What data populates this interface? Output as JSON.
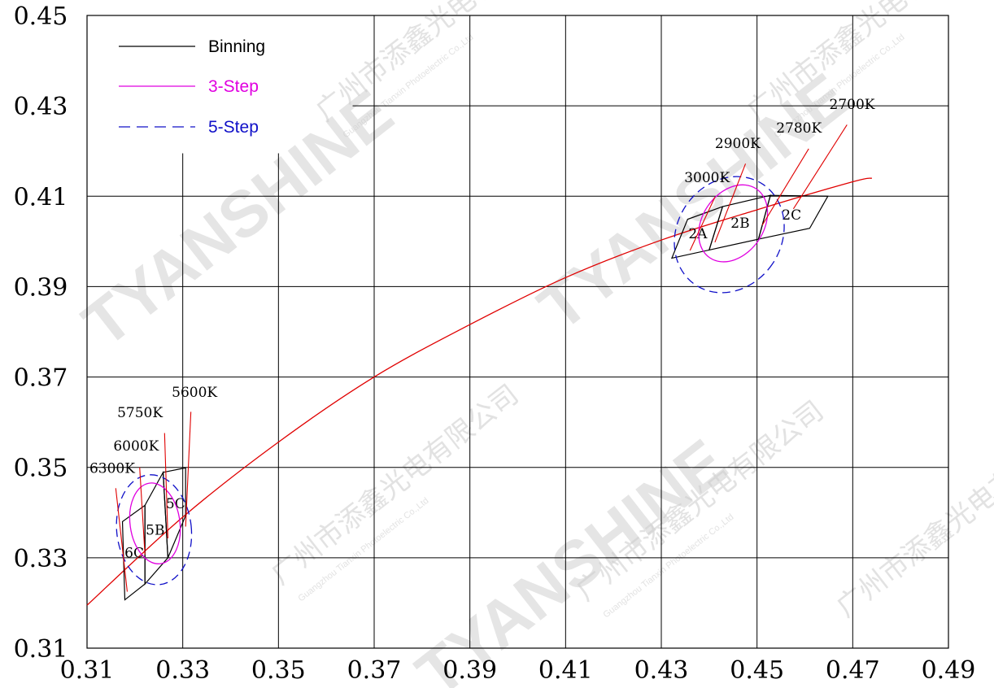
{
  "chart_data": {
    "type": "line",
    "xlim": [
      0.31,
      0.49
    ],
    "ylim": [
      0.31,
      0.45
    ],
    "x_ticks": [
      "0.31",
      "0.33",
      "0.35",
      "0.37",
      "0.39",
      "0.41",
      "0.43",
      "0.45",
      "0.47",
      "0.49"
    ],
    "y_ticks": [
      "0.45",
      "0.43",
      "0.41",
      "0.39",
      "0.37",
      "0.35",
      "0.33",
      "0.31"
    ],
    "grid": true,
    "legend_position": "top-left",
    "legend": [
      {
        "label": "Binning",
        "color": "#000000",
        "style": "solid"
      },
      {
        "label": "3-Step",
        "color": "#e000e0",
        "style": "solid"
      },
      {
        "label": "5-Step",
        "color": "#1010c8",
        "style": "dashed"
      }
    ],
    "blackbody_locus": {
      "color": "#e00000",
      "points": [
        [
          0.31,
          0.3195
        ],
        [
          0.33,
          0.339
        ],
        [
          0.35,
          0.3556
        ],
        [
          0.37,
          0.37
        ],
        [
          0.39,
          0.3816
        ],
        [
          0.41,
          0.392
        ],
        [
          0.43,
          0.4003
        ],
        [
          0.45,
          0.407
        ],
        [
          0.47,
          0.4132
        ],
        [
          0.474,
          0.414
        ]
      ]
    },
    "cct_labels": [
      {
        "label": "6300K",
        "text_at": [
          0.3105,
          0.3488
        ],
        "leader": [
          [
            0.316,
            0.3454
          ],
          [
            0.3184,
            0.3225
          ]
        ]
      },
      {
        "label": "6000K",
        "text_at": [
          0.3155,
          0.3537
        ],
        "leader": [
          [
            0.321,
            0.35
          ],
          [
            0.3221,
            0.3307
          ]
        ]
      },
      {
        "label": "5750K",
        "text_at": [
          0.3163,
          0.3611
        ],
        "leader": [
          [
            0.3262,
            0.3576
          ],
          [
            0.3269,
            0.3343
          ]
        ]
      },
      {
        "label": "5600K",
        "text_at": [
          0.3277,
          0.3656
        ],
        "leader": [
          [
            0.3317,
            0.3623
          ],
          [
            0.3306,
            0.3369
          ]
        ]
      },
      {
        "label": "3000K",
        "text_at": [
          0.4348,
          0.4131
        ],
        "leader": [
          [
            0.4412,
            0.4098
          ],
          [
            0.436,
            0.398
          ]
        ]
      },
      {
        "label": "2900K",
        "text_at": [
          0.4412,
          0.4207
        ],
        "leader": [
          [
            0.4476,
            0.4172
          ],
          [
            0.4412,
            0.3998
          ]
        ]
      },
      {
        "label": "2780K",
        "text_at": [
          0.454,
          0.4241
        ],
        "leader": [
          [
            0.4608,
            0.4205
          ],
          [
            0.4511,
            0.4036
          ]
        ]
      },
      {
        "label": "2700K",
        "text_at": [
          0.4651,
          0.4293
        ],
        "leader": [
          [
            0.4688,
            0.4258
          ],
          [
            0.4576,
            0.4072
          ]
        ]
      }
    ],
    "bins": [
      {
        "name": "6C",
        "polygon": [
          [
            0.3179,
            0.3207
          ],
          [
            0.3221,
            0.3242
          ],
          [
            0.3221,
            0.3416
          ],
          [
            0.3174,
            0.338
          ]
        ]
      },
      {
        "name": "5B",
        "polygon": [
          [
            0.3221,
            0.3242
          ],
          [
            0.3269,
            0.33
          ],
          [
            0.3259,
            0.3489
          ],
          [
            0.3221,
            0.3416
          ]
        ]
      },
      {
        "name": "5C",
        "polygon": [
          [
            0.3269,
            0.33
          ],
          [
            0.3306,
            0.3393
          ],
          [
            0.3306,
            0.3499
          ],
          [
            0.3259,
            0.3489
          ]
        ]
      },
      {
        "name": "2A",
        "polygon": [
          [
            0.4322,
            0.3963
          ],
          [
            0.44,
            0.3981
          ],
          [
            0.4428,
            0.4077
          ],
          [
            0.4355,
            0.4049
          ]
        ]
      },
      {
        "name": "2B",
        "polygon": [
          [
            0.44,
            0.3981
          ],
          [
            0.4503,
            0.4005
          ],
          [
            0.4528,
            0.4102
          ],
          [
            0.4428,
            0.4077
          ]
        ]
      },
      {
        "name": "2C",
        "polygon": [
          [
            0.4503,
            0.4005
          ],
          [
            0.461,
            0.4029
          ],
          [
            0.4648,
            0.41
          ],
          [
            0.4528,
            0.4102
          ]
        ]
      }
    ],
    "ellipses_3step": [
      {
        "center": [
          0.3242,
          0.3376
        ],
        "rx": 0.0052,
        "ry": 0.009,
        "rotate": -8
      },
      {
        "center": [
          0.445,
          0.404
        ],
        "rx": 0.0064,
        "ry": 0.0092,
        "rotate": 34
      }
    ],
    "ellipses_5step": [
      {
        "center": [
          0.324,
          0.3362
        ],
        "rx": 0.0078,
        "ry": 0.0122,
        "rotate": -6
      },
      {
        "center": [
          0.4442,
          0.4015
        ],
        "rx": 0.0109,
        "ry": 0.0134,
        "rotate": 34
      }
    ]
  },
  "watermarks": {
    "brand": "TYANSHINE",
    "cn": "广州市添鑫光电有限公司",
    "en": "Guangzhou Tianxin Photoelectric Co.,Ltd"
  },
  "colors": {
    "grid": "#000000",
    "locus": "#e00000",
    "three_step": "#e000e0",
    "five_step": "#1010c8"
  }
}
